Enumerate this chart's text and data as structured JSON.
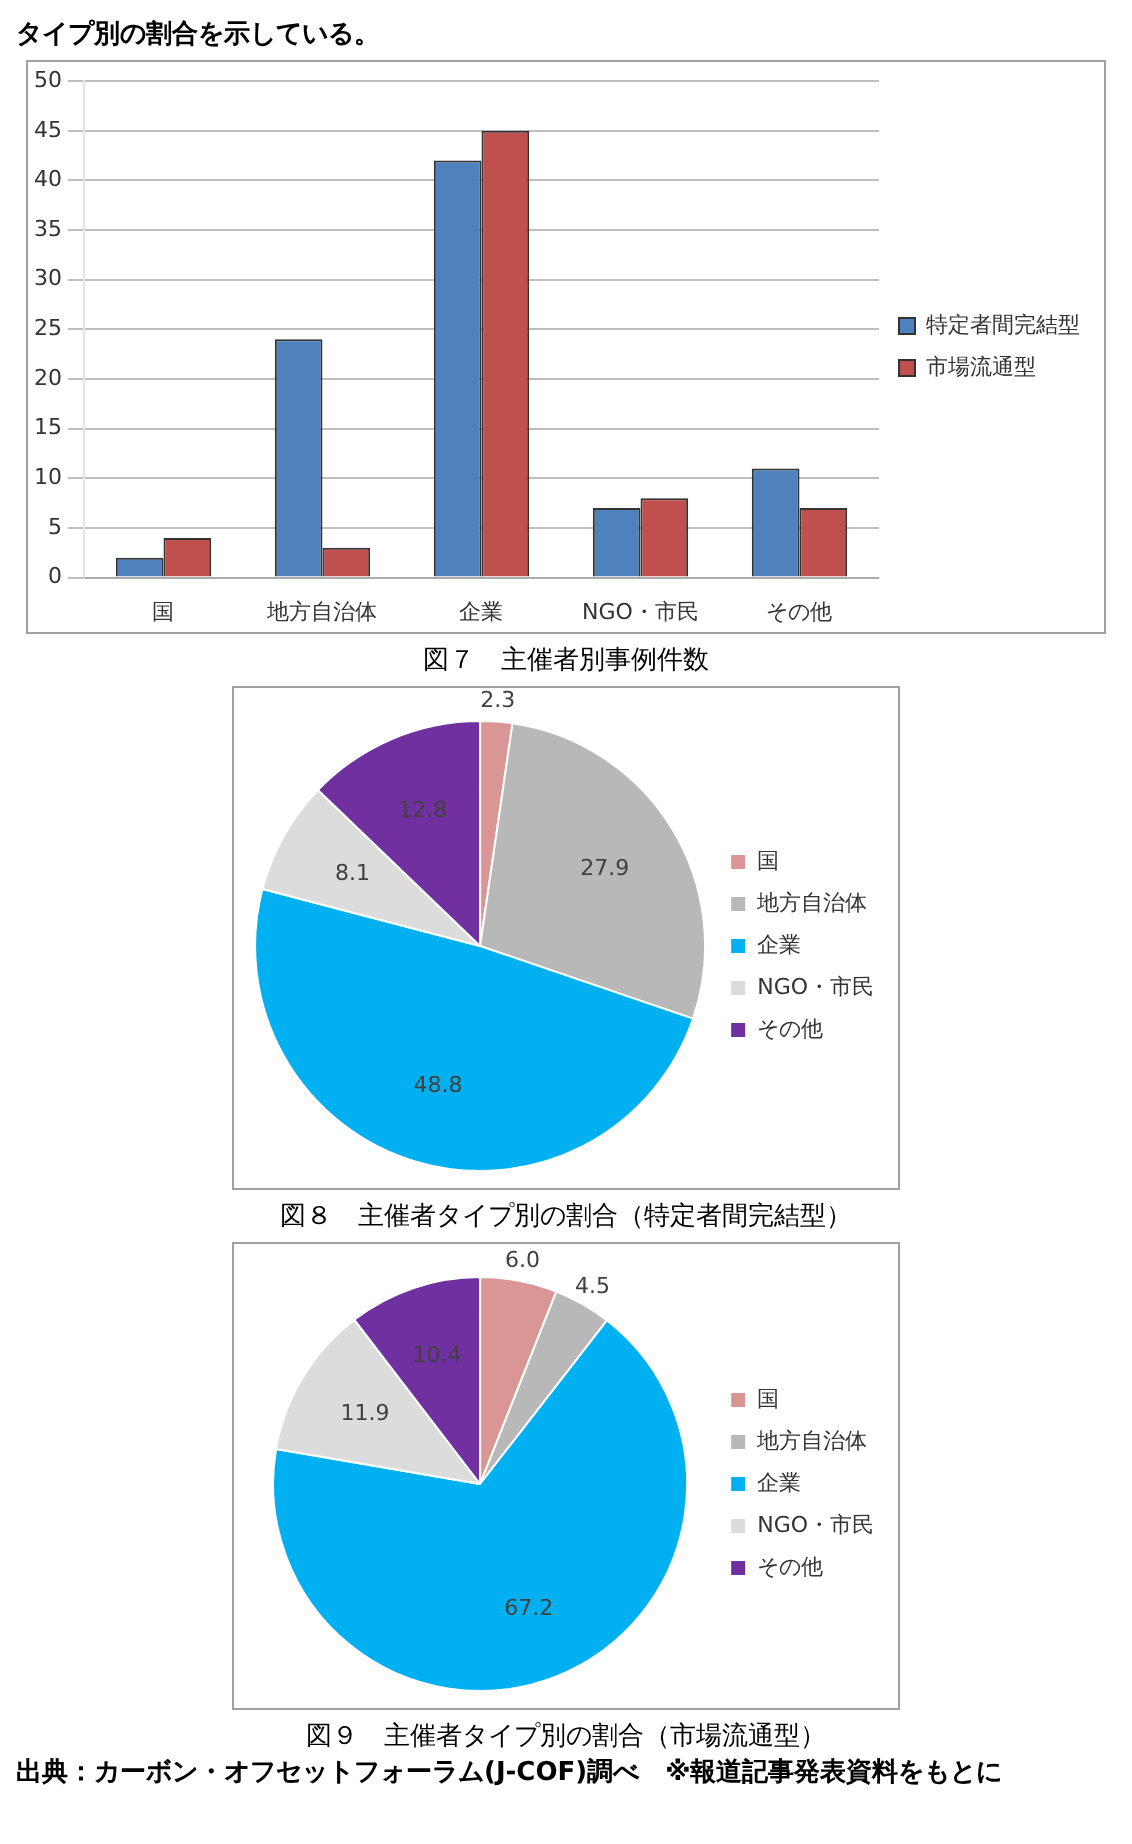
{
  "chart_data": [
    {
      "type": "bar",
      "title": "図７　主催者別事例件数",
      "categories": [
        "国",
        "地方自治体",
        "企業",
        "NGO・市民",
        "その他"
      ],
      "series": [
        {
          "name": "特定者間完結型",
          "color": "#4f81bd",
          "values": [
            2,
            24,
            42,
            7,
            11
          ]
        },
        {
          "name": "市場流通型",
          "color": "#c0504d",
          "values": [
            4,
            3,
            45,
            8,
            7
          ]
        }
      ],
      "ylim": [
        0,
        50
      ],
      "yticks": [
        0,
        5,
        10,
        15,
        20,
        25,
        30,
        35,
        40,
        45,
        50
      ],
      "grid": "y",
      "legend": "right",
      "annotations": [
        "タイプ別の割合を示している。"
      ]
    },
    {
      "type": "pie",
      "title": "図８　主催者タイプ別の割合（特定者間完結型）",
      "categories": [
        "国",
        "地方自治体",
        "企業",
        "NGO・市民",
        "その他"
      ],
      "values": [
        2.3,
        27.9,
        48.8,
        8.1,
        12.8
      ],
      "value_labels": [
        "2.3",
        "27.9",
        "48.8",
        "8.1",
        "12.8"
      ],
      "colors": [
        "#d99694",
        "#b8b8b8",
        "#00b0f0",
        "#dcdcdc",
        "#7030a0"
      ],
      "legend": "right"
    },
    {
      "type": "pie",
      "title": "図９　主催者タイプ別の割合（市場流通型）",
      "categories": [
        "国",
        "地方自治体",
        "企業",
        "NGO・市民",
        "その他"
      ],
      "values": [
        6.0,
        4.5,
        67.2,
        11.9,
        10.4
      ],
      "value_labels": [
        "6.0",
        "4.5",
        "67.2",
        "11.9",
        "10.4"
      ],
      "colors": [
        "#d99694",
        "#b8b8b8",
        "#00b0f0",
        "#dcdcdc",
        "#7030a0"
      ],
      "legend": "right",
      "annotations": [
        "出典：カーボン・オフセットフォーラム(J-COF)調べ　※報道記事発表資料をもとに"
      ]
    }
  ]
}
